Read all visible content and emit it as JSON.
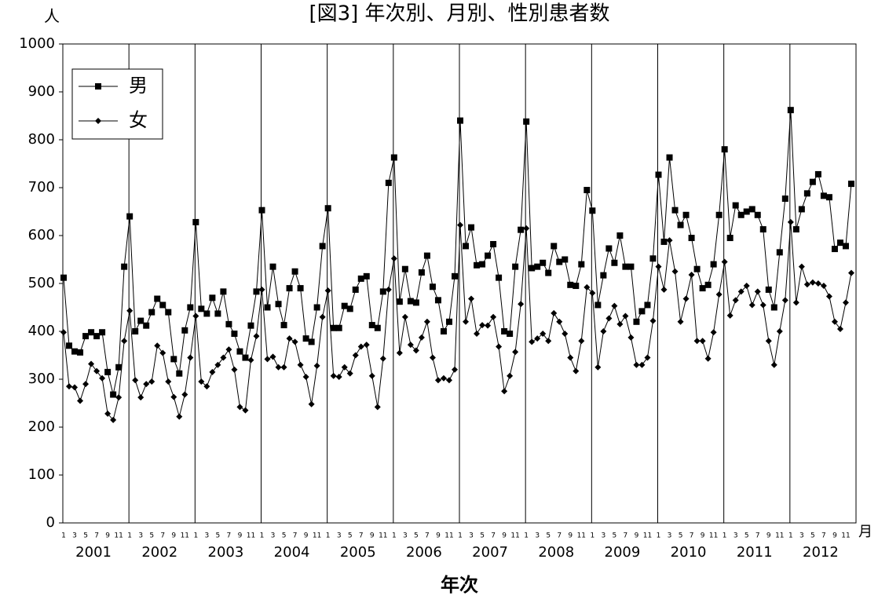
{
  "chart_data": {
    "type": "line",
    "title": "[図3] 年次別、月別、性別患者数",
    "y_unit_label": "人",
    "x_unit_label": "月",
    "x_axis_label": "年次",
    "categories": [
      "1",
      null,
      "3",
      null,
      "5",
      null,
      "7",
      null,
      "9",
      null,
      "11",
      null,
      "1",
      null,
      "3",
      null,
      "5",
      null,
      "7",
      null,
      "9",
      null,
      "11",
      null,
      "1",
      null,
      "3",
      null,
      "5",
      null,
      "7",
      null,
      "9",
      null,
      "11",
      null,
      "1",
      null,
      "3",
      null,
      "5",
      null,
      "7",
      null,
      "9",
      null,
      "11",
      null,
      "1",
      null,
      "3",
      null,
      "5",
      null,
      "7",
      null,
      "9",
      null,
      "11",
      null,
      "1",
      null,
      "3",
      null,
      "5",
      null,
      "7",
      null,
      "9",
      null,
      "11",
      null,
      "1",
      null,
      "3",
      null,
      "5",
      null,
      "7",
      null,
      "9",
      null,
      "11",
      null,
      "1",
      null,
      "3",
      null,
      "5",
      null,
      "7",
      null,
      "9",
      null,
      "11",
      null,
      "1",
      null,
      "3",
      null,
      "5",
      null,
      "7",
      null,
      "9",
      null,
      "11",
      null,
      "1",
      null,
      "3",
      null,
      "5",
      null,
      "7",
      null,
      "9",
      null,
      "11",
      null,
      "1",
      null,
      "3",
      null,
      "5",
      null,
      "7",
      null,
      "9",
      null,
      "11",
      null,
      "1",
      null,
      "3",
      null,
      "5",
      null,
      "7",
      null,
      "9",
      null,
      "11",
      null
    ],
    "year_labels": [
      "2001",
      "2002",
      "2003",
      "2004",
      "2005",
      "2006",
      "2007",
      "2008",
      "2009",
      "2010",
      "2011",
      "2012"
    ],
    "series": [
      {
        "name": "男",
        "color": "#000000",
        "marker": "square",
        "values": [
          512,
          370,
          358,
          356,
          390,
          398,
          390,
          398,
          315,
          268,
          325,
          535,
          640,
          400,
          422,
          412,
          440,
          468,
          455,
          440,
          342,
          312,
          402,
          450,
          628,
          447,
          437,
          470,
          437,
          483,
          415,
          395,
          358,
          345,
          412,
          483,
          653,
          450,
          535,
          457,
          413,
          490,
          525,
          490,
          385,
          378,
          450,
          578,
          657,
          407,
          407,
          453,
          447,
          487,
          510,
          515,
          413,
          407,
          483,
          710,
          763,
          462,
          530,
          463,
          460,
          523,
          558,
          493,
          465,
          400,
          420,
          515,
          840,
          578,
          617,
          538,
          540,
          558,
          582,
          512,
          400,
          395,
          535,
          612,
          838,
          532,
          535,
          543,
          522,
          578,
          545,
          550,
          497,
          495,
          540,
          695,
          652,
          455,
          517,
          573,
          543,
          600,
          535,
          535,
          420,
          442,
          455,
          552,
          727,
          587,
          763,
          653,
          622,
          643,
          595,
          530,
          490,
          497,
          540,
          643,
          780,
          595,
          663,
          643,
          650,
          655,
          643,
          613,
          487,
          450,
          565,
          677,
          862,
          613,
          655,
          688,
          712,
          728,
          683,
          680,
          572,
          585,
          578,
          708
        ]
      },
      {
        "name": "女",
        "color": "#000000",
        "marker": "diamond",
        "values": [
          398,
          285,
          283,
          255,
          290,
          332,
          317,
          302,
          228,
          215,
          262,
          380,
          443,
          298,
          262,
          290,
          295,
          370,
          355,
          295,
          263,
          222,
          268,
          345,
          432,
          295,
          285,
          315,
          330,
          345,
          362,
          320,
          242,
          235,
          340,
          390,
          487,
          342,
          347,
          325,
          325,
          385,
          378,
          330,
          305,
          248,
          328,
          430,
          485,
          307,
          305,
          325,
          312,
          350,
          368,
          372,
          307,
          242,
          343,
          487,
          552,
          355,
          430,
          372,
          360,
          387,
          420,
          345,
          298,
          302,
          298,
          320,
          622,
          420,
          468,
          395,
          413,
          412,
          430,
          368,
          275,
          307,
          357,
          457,
          615,
          378,
          385,
          395,
          380,
          438,
          420,
          395,
          345,
          317,
          380,
          492,
          480,
          325,
          400,
          427,
          453,
          415,
          432,
          387,
          330,
          330,
          345,
          422,
          535,
          487,
          590,
          525,
          420,
          468,
          518,
          380,
          380,
          343,
          398,
          477,
          545,
          433,
          465,
          483,
          495,
          455,
          483,
          455,
          380,
          330,
          400,
          465,
          628,
          460,
          535,
          498,
          502,
          500,
          495,
          473,
          420,
          405,
          460,
          522
        ]
      }
    ],
    "ylim": [
      0,
      1000
    ],
    "yticks": [
      0,
      100,
      200,
      300,
      400,
      500,
      600,
      700,
      800,
      900,
      1000
    ],
    "legend": "top-left"
  }
}
